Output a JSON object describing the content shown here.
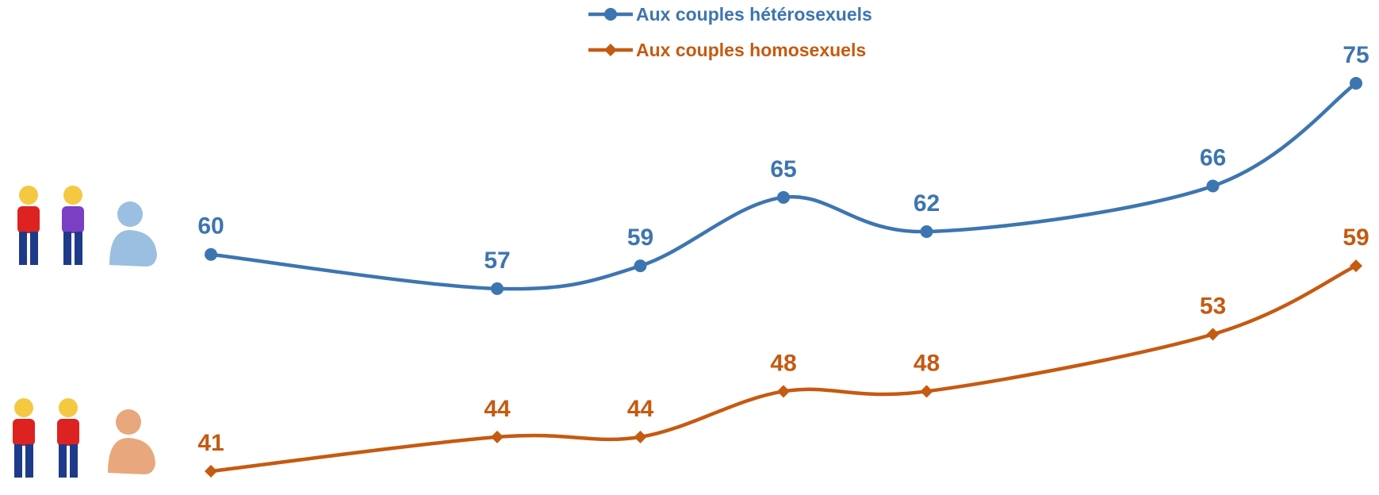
{
  "chart_data": {
    "type": "line",
    "categories": [
      null,
      null,
      null,
      null,
      null,
      null,
      null
    ],
    "series": [
      {
        "name": "Aux couples hétérosexuels",
        "color": "#3d75b0",
        "marker": "circle",
        "values": [
          60,
          57,
          59,
          65,
          62,
          66,
          75
        ]
      },
      {
        "name": "Aux couples homosexuels",
        "color": "#c55a11",
        "marker": "diamond",
        "values": [
          41,
          44,
          44,
          48,
          48,
          53,
          59
        ]
      }
    ],
    "smooth": true,
    "grid": false
  }
}
